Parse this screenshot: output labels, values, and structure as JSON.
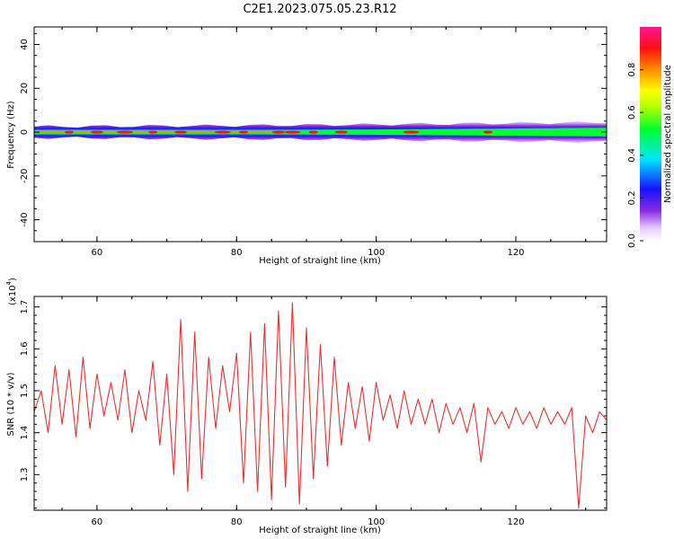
{
  "title": "C2E1.2023.075.05.23.R12",
  "colors": {
    "snr_line": "#e8322d",
    "axis": "#000000",
    "background": "#ffffff"
  },
  "colorbar": {
    "label": "Normalized spectral amplitude",
    "ticks": [
      0.0,
      0.2,
      0.4,
      0.6,
      0.8
    ],
    "tick_labels": [
      "0.0",
      "0.2",
      "0.4",
      "0.6",
      "0.8"
    ],
    "range": [
      0,
      1
    ],
    "colormap": "rainbow (white-violet-blue-cyan-green-yellow-orange-red-magenta)"
  },
  "chart_data": [
    {
      "type": "heatmap",
      "xlabel": "Height of straight line (km)",
      "ylabel": "Frequency (Hz)",
      "xlim": [
        51,
        133
      ],
      "ylim": [
        -50,
        48
      ],
      "xticks": [
        60,
        80,
        100,
        120
      ],
      "xtick_labels": [
        "60",
        "80",
        "100",
        "120"
      ],
      "yticks": [
        -40,
        -20,
        0,
        20,
        40
      ],
      "ytick_labels": [
        "-40",
        "-20",
        "0",
        "20",
        "40"
      ],
      "band_center_hz": 0,
      "band_halfwidth_hz": [
        {
          "x": 51,
          "core": 0.8,
          "outer": 2.5
        },
        {
          "x": 80,
          "core": 0.8,
          "outer": 3.0
        },
        {
          "x": 100,
          "core": 1.2,
          "outer": 3.5
        },
        {
          "x": 133,
          "core": 2.0,
          "outer": 4.5
        }
      ],
      "peak_positions_km": [
        56,
        60,
        64,
        68,
        72,
        78,
        81,
        86,
        88,
        91,
        95,
        105,
        116
      ]
    },
    {
      "type": "line",
      "xlabel": "Height of straight line (km)",
      "ylabel": "SNR (10 * v/v)",
      "y_multiplier_label": "(x10",
      "y_multiplier_exp": "4",
      "xlim": [
        51,
        133
      ],
      "ylim": [
        1.215,
        1.725
      ],
      "xticks": [
        60,
        80,
        100,
        120
      ],
      "xtick_labels": [
        "60",
        "80",
        "100",
        "120"
      ],
      "yticks": [
        1.3,
        1.4,
        1.5,
        1.6,
        1.7
      ],
      "ytick_labels": [
        "1.3",
        "1.4",
        "1.5",
        "1.6",
        "1.7"
      ],
      "series": [
        {
          "x": [
            51.0,
            52.0,
            53.0,
            54.0,
            55.0,
            56.0,
            57.0,
            58.0,
            59.0,
            60.0,
            61.0,
            62.0,
            63.0,
            64.0,
            65.0,
            66.0,
            67.0,
            68.0,
            69.0,
            70.0,
            71.0,
            72.0,
            73.0,
            74.0,
            75.0,
            76.0,
            77.0,
            78.0,
            79.0,
            80.0,
            81.0,
            82.0,
            83.0,
            84.0,
            85.0,
            86.0,
            87.0,
            88.0,
            89.0,
            90.0,
            91.0,
            92.0,
            93.0,
            94.0,
            95.0,
            96.0,
            97.0,
            98.0,
            99.0,
            100.0,
            101.0,
            102.0,
            103.0,
            104.0,
            105.0,
            106.0,
            107.0,
            108.0,
            109.0,
            110.0,
            111.0,
            112.0,
            113.0,
            114.0,
            115.0,
            116.0,
            117.0,
            118.0,
            119.0,
            120.0,
            121.0,
            122.0,
            123.0,
            124.0,
            125.0,
            126.0,
            127.0,
            128.0,
            129.0,
            130.0,
            131.0,
            132.0,
            133.0
          ],
          "values": [
            1.45,
            1.5,
            1.4,
            1.56,
            1.42,
            1.55,
            1.39,
            1.58,
            1.41,
            1.54,
            1.44,
            1.52,
            1.43,
            1.55,
            1.4,
            1.5,
            1.43,
            1.57,
            1.37,
            1.54,
            1.3,
            1.67,
            1.26,
            1.64,
            1.29,
            1.58,
            1.41,
            1.56,
            1.45,
            1.59,
            1.28,
            1.64,
            1.26,
            1.66,
            1.24,
            1.69,
            1.27,
            1.71,
            1.23,
            1.65,
            1.29,
            1.61,
            1.32,
            1.58,
            1.37,
            1.52,
            1.41,
            1.51,
            1.38,
            1.52,
            1.43,
            1.49,
            1.41,
            1.5,
            1.42,
            1.48,
            1.42,
            1.48,
            1.4,
            1.47,
            1.42,
            1.46,
            1.4,
            1.47,
            1.33,
            1.46,
            1.42,
            1.45,
            1.41,
            1.46,
            1.42,
            1.45,
            1.41,
            1.46,
            1.42,
            1.45,
            1.42,
            1.46,
            1.22,
            1.44,
            1.4,
            1.45,
            1.43
          ]
        }
      ]
    }
  ]
}
